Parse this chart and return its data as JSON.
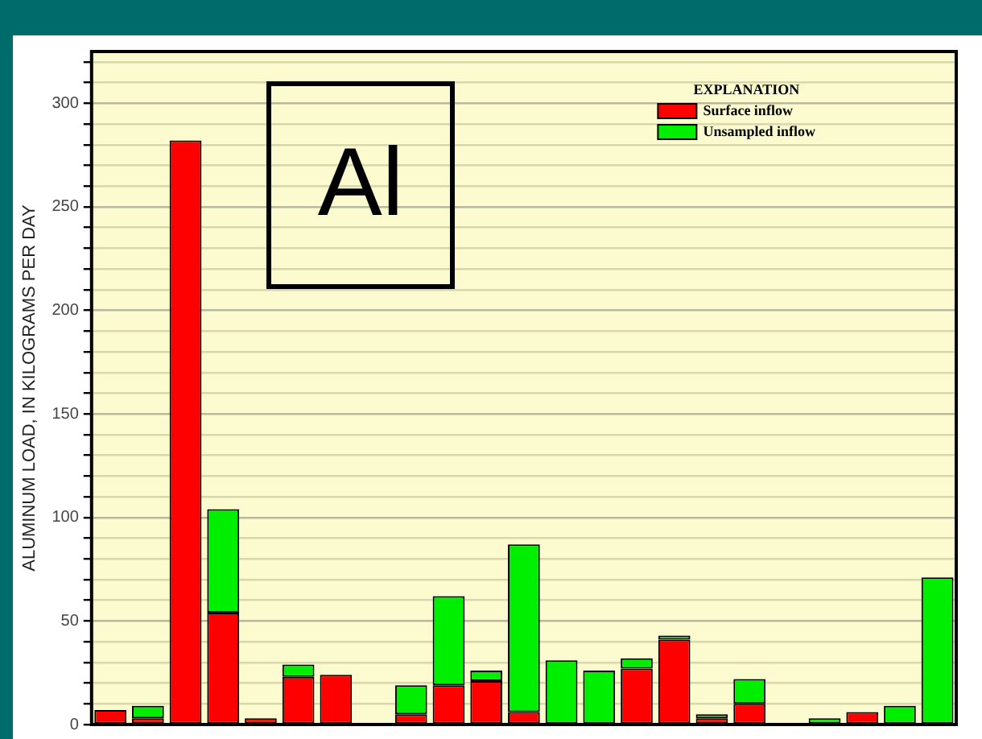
{
  "chart_data": {
    "type": "bar",
    "stacked": true,
    "ylabel": "ALUMINUM LOAD, IN KILOGRAMS PER DAY",
    "legend_title": "EXPLANATION",
    "legend": "top right",
    "grid": "y",
    "tick_labels": "y",
    "annotations": [
      "Al"
    ],
    "categories": [
      null,
      null,
      null,
      null,
      null,
      null,
      null,
      null,
      null,
      null,
      null,
      null,
      null,
      null,
      null,
      null,
      null,
      null,
      null,
      null,
      null,
      null,
      null
    ],
    "series": [
      {
        "name": "Surface inflow",
        "color": "#ff0000",
        "values": [
          7,
          3,
          282,
          54,
          3,
          23,
          24,
          null,
          5,
          19,
          21,
          6,
          null,
          null,
          27,
          41,
          3,
          10,
          null,
          null,
          6,
          null,
          null
        ]
      },
      {
        "name": "Unsampled inflow",
        "color": "#00ee00",
        "values": [
          null,
          6,
          null,
          50,
          null,
          6,
          null,
          null,
          14,
          43,
          5,
          81,
          31,
          26,
          5,
          2,
          2,
          12,
          null,
          3,
          null,
          9,
          71
        ]
      }
    ],
    "ylim": [
      0,
      325
    ],
    "yticks": [
      0,
      {
        "value": 10,
        "label": null
      },
      {
        "value": 20,
        "label": null
      },
      {
        "value": 30,
        "label": null
      },
      {
        "value": 40,
        "label": null
      },
      50,
      {
        "value": 60,
        "label": null
      },
      {
        "value": 70,
        "label": null
      },
      {
        "value": 80,
        "label": null
      },
      {
        "value": 90,
        "label": null
      },
      100,
      {
        "value": 110,
        "label": null
      },
      {
        "value": 120,
        "label": null
      },
      {
        "value": 130,
        "label": null
      },
      {
        "value": 140,
        "label": null
      },
      150,
      {
        "value": 160,
        "label": null
      },
      {
        "value": 170,
        "label": null
      },
      {
        "value": 180,
        "label": null
      },
      {
        "value": 190,
        "label": null
      },
      200,
      {
        "value": 210,
        "label": null
      },
      {
        "value": 220,
        "label": null
      },
      {
        "value": 230,
        "label": null
      },
      {
        "value": 240,
        "label": null
      },
      250,
      {
        "value": 260,
        "label": null
      },
      {
        "value": 270,
        "label": null
      },
      {
        "value": 280,
        "label": null
      },
      {
        "value": 290,
        "label": null
      },
      300,
      {
        "value": 310,
        "label": null
      },
      {
        "value": 320,
        "label": null
      }
    ]
  }
}
